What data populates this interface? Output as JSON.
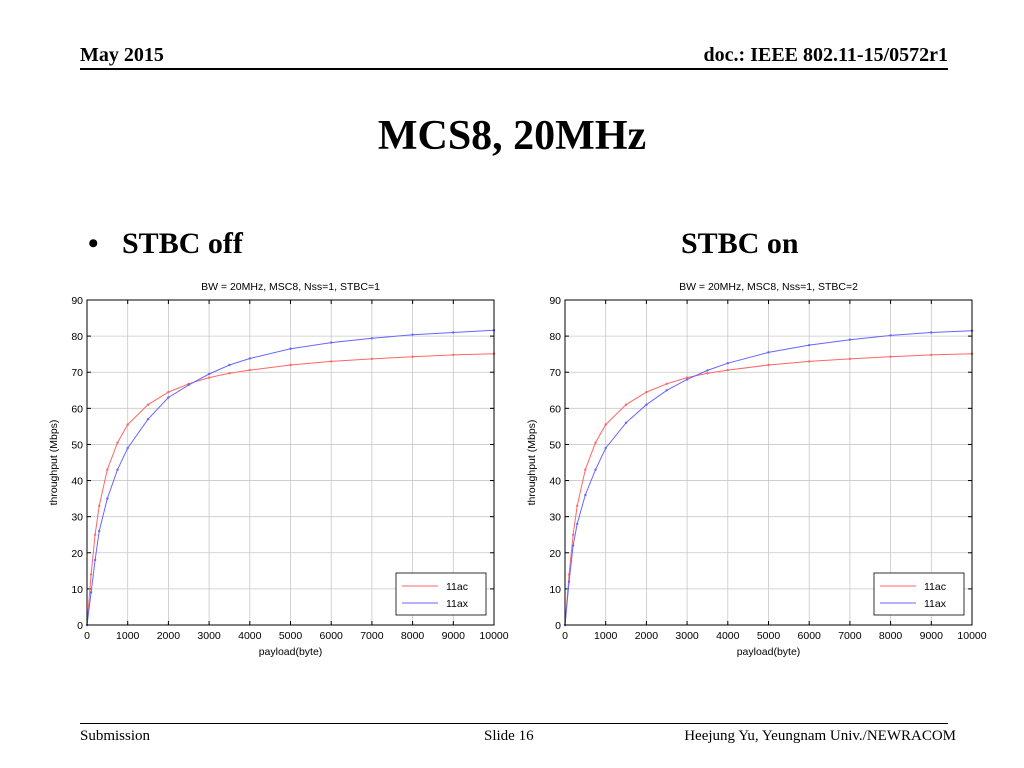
{
  "header": {
    "date": "May 2015",
    "doc": "doc.: IEEE 802.11-15/0572r1"
  },
  "title": "MCS8, 20MHz",
  "bullet": {
    "left": "STBC off",
    "right": "STBC on"
  },
  "footer": {
    "left": "Submission",
    "center": "Slide 16",
    "right": "Heejung Yu, Yeungnam Univ./NEWRACOM"
  },
  "colors": {
    "series_11ac": "#ff6666",
    "series_11ax": "#6666ff",
    "grid": "#c8c8c8"
  },
  "chart_data": [
    {
      "type": "line",
      "title": "BW = 20MHz, MSC8, Nss=1, STBC=1",
      "xlabel": "payload(byte)",
      "ylabel": "throughput (Mbps)",
      "xlim": [
        0,
        10000
      ],
      "ylim": [
        0,
        90
      ],
      "xticks": [
        0,
        1000,
        2000,
        3000,
        4000,
        5000,
        6000,
        7000,
        8000,
        9000,
        10000
      ],
      "yticks": [
        0,
        10,
        20,
        30,
        40,
        50,
        60,
        70,
        80,
        90
      ],
      "grid": true,
      "legend_position": "bottom-right",
      "x": [
        0,
        100,
        200,
        300,
        500,
        750,
        1000,
        1500,
        2000,
        2500,
        3000,
        3500,
        4000,
        5000,
        6000,
        7000,
        8000,
        9000,
        10000
      ],
      "series": [
        {
          "name": "11ac",
          "color": "#ff6666",
          "values": [
            0,
            14,
            25,
            33,
            43,
            50.5,
            55.5,
            61,
            64.5,
            66.8,
            68.5,
            69.7,
            70.6,
            72,
            73,
            73.7,
            74.3,
            74.8,
            75.1
          ]
        },
        {
          "name": "11ax",
          "color": "#6666ff",
          "values": [
            0,
            9,
            18,
            26,
            35,
            43,
            49,
            57,
            63,
            66.5,
            69.5,
            72,
            73.8,
            76.5,
            78.2,
            79.4,
            80.4,
            81,
            81.6
          ]
        }
      ]
    },
    {
      "type": "line",
      "title": "BW = 20MHz, MSC8, Nss=1, STBC=2",
      "xlabel": "payload(byte)",
      "ylabel": "throughput (Mbps)",
      "xlim": [
        0,
        10000
      ],
      "ylim": [
        0,
        90
      ],
      "xticks": [
        0,
        1000,
        2000,
        3000,
        4000,
        5000,
        6000,
        7000,
        8000,
        9000,
        10000
      ],
      "yticks": [
        0,
        10,
        20,
        30,
        40,
        50,
        60,
        70,
        80,
        90
      ],
      "grid": true,
      "legend_position": "bottom-right",
      "x": [
        0,
        100,
        200,
        300,
        500,
        750,
        1000,
        1500,
        2000,
        2500,
        3000,
        3500,
        4000,
        5000,
        6000,
        7000,
        8000,
        9000,
        10000
      ],
      "series": [
        {
          "name": "11ac",
          "color": "#ff6666",
          "values": [
            0,
            14,
            25,
            33,
            43,
            50.5,
            55.5,
            61,
            64.5,
            66.8,
            68.5,
            69.7,
            70.6,
            72,
            73,
            73.7,
            74.3,
            74.8,
            75.1
          ]
        },
        {
          "name": "11ax",
          "color": "#6666ff",
          "values": [
            0,
            12,
            22,
            28,
            36,
            43,
            49,
            56,
            61,
            65,
            68,
            70.5,
            72.5,
            75.5,
            77.5,
            79,
            80.2,
            81,
            81.5
          ]
        }
      ]
    }
  ]
}
